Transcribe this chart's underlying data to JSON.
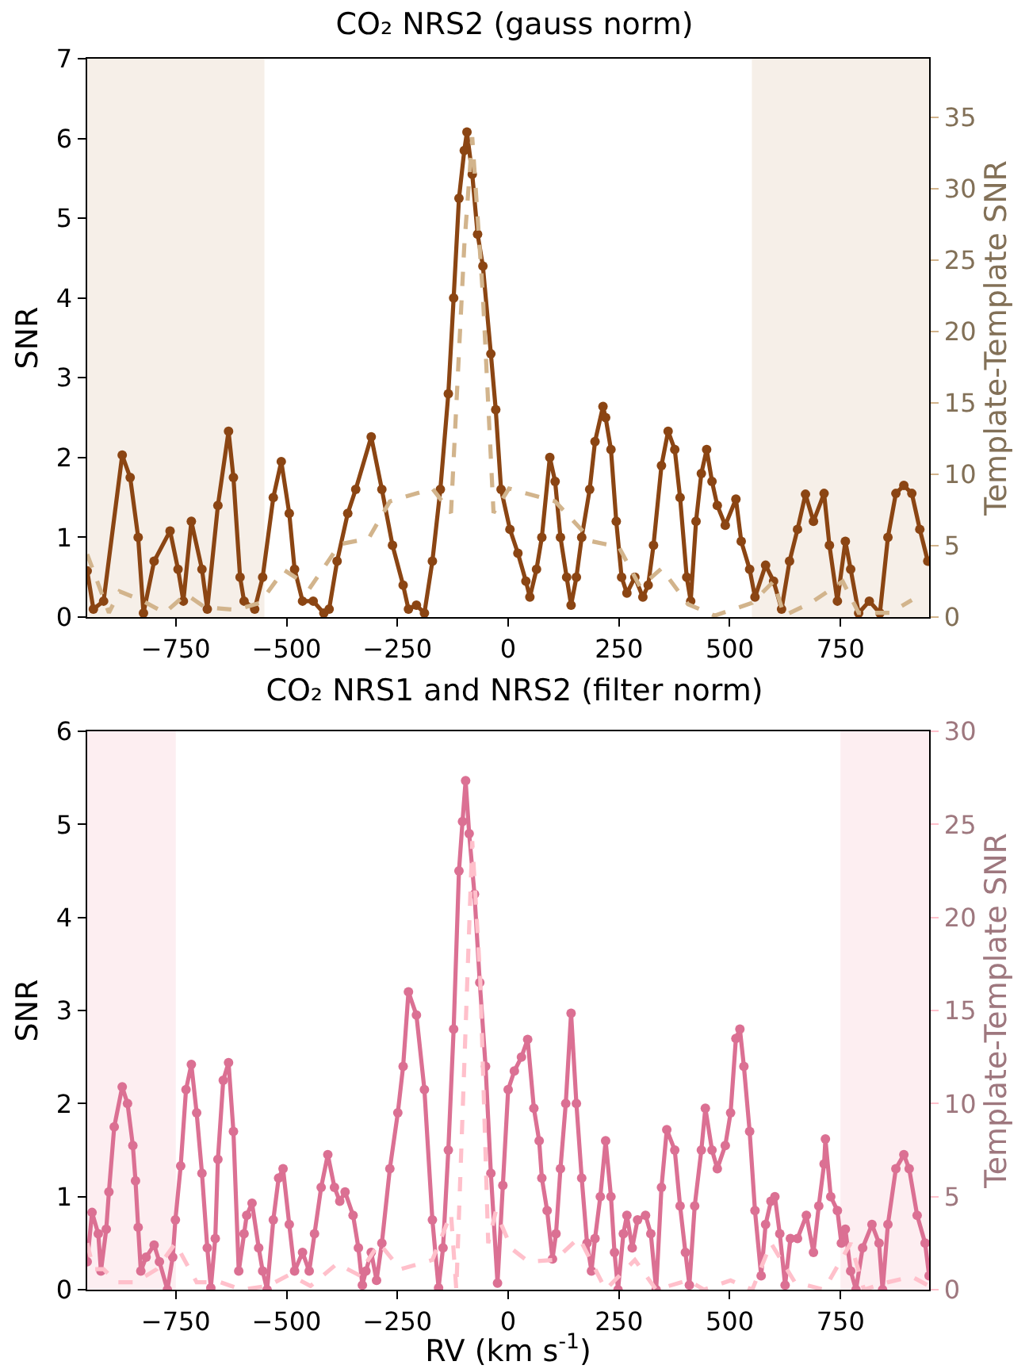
{
  "chart_data": [
    {
      "type": "line",
      "title": "CO₂ NRS2 (gauss norm)",
      "ylabel": "SNR",
      "y2label": "Template-Template SNR",
      "xlim": [
        -950,
        950
      ],
      "xticks": [
        -750,
        -500,
        -250,
        0,
        250,
        500,
        750
      ],
      "ylim": [
        0,
        7
      ],
      "yticks": [
        0,
        1,
        2,
        3,
        4,
        5,
        6,
        7
      ],
      "y2lim": [
        0,
        39.1
      ],
      "y2ticks": [
        0,
        5,
        10,
        15,
        20,
        25,
        30,
        35
      ],
      "bands": [
        {
          "axis": "x",
          "from": -950,
          "to": -550,
          "color": "#f6efe8"
        },
        {
          "axis": "x",
          "from": 550,
          "to": 950,
          "color": "#f6efe8"
        }
      ],
      "series": [
        {
          "color": "#8b4513",
          "marker": "circle",
          "line_style": "solid",
          "x": [
            -950,
            -936,
            -913,
            -871,
            -853,
            -835,
            -823,
            -799,
            -763,
            -745,
            -733,
            -715,
            -691,
            -679,
            -655,
            -631,
            -620,
            -605,
            -596,
            -572,
            -554,
            -530,
            -512,
            -494,
            -482,
            -464,
            -440,
            -416,
            -404,
            -386,
            -362,
            -344,
            -309,
            -285,
            -261,
            -237,
            -225,
            -207,
            -189,
            -171,
            -153,
            -135,
            -123,
            -111,
            -99,
            -93,
            -81,
            -69,
            -57,
            -39,
            -28,
            -16,
            4,
            22,
            40,
            49,
            64,
            76,
            94,
            106,
            118,
            132,
            142,
            154,
            166,
            184,
            196,
            214,
            220,
            232,
            244,
            256,
            268,
            286,
            304,
            316,
            328,
            346,
            361,
            376,
            388,
            403,
            412,
            424,
            436,
            448,
            460,
            472,
            490,
            514,
            526,
            545,
            557,
            581,
            599,
            617,
            635,
            653,
            671,
            689,
            713,
            725,
            743,
            761,
            773,
            791,
            815,
            839,
            857,
            875,
            893,
            911,
            929,
            947
          ],
          "values": [
            0.58,
            0.1,
            0.2,
            2.03,
            1.75,
            1.0,
            0.05,
            0.7,
            1.08,
            0.6,
            0.2,
            1.2,
            0.6,
            0.1,
            1.4,
            2.33,
            1.75,
            0.5,
            0.2,
            0.1,
            0.5,
            1.5,
            1.95,
            1.3,
            0.6,
            0.2,
            0.2,
            0.05,
            0.1,
            0.7,
            1.3,
            1.6,
            2.26,
            1.6,
            0.9,
            0.4,
            0.1,
            0.15,
            0.05,
            0.7,
            1.6,
            2.8,
            4.0,
            5.25,
            5.85,
            6.08,
            5.55,
            4.8,
            4.4,
            3.3,
            2.6,
            1.6,
            1.1,
            0.8,
            0.45,
            0.25,
            0.6,
            1.0,
            2.0,
            1.7,
            1.0,
            0.5,
            0.15,
            0.5,
            1.0,
            1.6,
            2.2,
            2.64,
            2.5,
            2.1,
            1.2,
            0.5,
            0.3,
            0.5,
            0.25,
            0.4,
            0.9,
            1.9,
            2.33,
            2.1,
            1.5,
            0.5,
            0.2,
            1.2,
            1.8,
            2.1,
            1.7,
            1.4,
            1.15,
            1.48,
            0.95,
            0.6,
            0.25,
            0.65,
            0.45,
            0.1,
            0.7,
            1.1,
            1.54,
            1.2,
            1.55,
            0.9,
            0.2,
            0.95,
            0.6,
            0.05,
            0.2,
            0.05,
            1.0,
            1.55,
            1.65,
            1.55,
            1.1,
            0.7
          ]
        },
        {
          "color": "#d2b48c",
          "marker": "none",
          "line_style": "dashed",
          "axis": "y2",
          "x": [
            -950,
            -901,
            -877,
            -829,
            -775,
            -727,
            -685,
            -614,
            -560,
            -506,
            -446,
            -380,
            -315,
            -267,
            -171,
            -129,
            -99,
            -81,
            -57,
            -33,
            2,
            106,
            190,
            250,
            298,
            346,
            406,
            466,
            551,
            599,
            623,
            683,
            755,
            791,
            863,
            911
          ],
          "values": [
            4.4,
            0.3,
            1.8,
            1.2,
            0.3,
            1.6,
            0.7,
            0.5,
            1.0,
            3.3,
            2.1,
            5.1,
            5.5,
            8.1,
            9.0,
            7.3,
            26,
            33.6,
            22.5,
            7.3,
            9.0,
            8.1,
            5.3,
            4.9,
            2.1,
            3.4,
            0.9,
            0.1,
            1.0,
            2.5,
            0.1,
            1.0,
            2.5,
            0.3,
            0.3,
            1.2
          ]
        }
      ]
    },
    {
      "type": "line",
      "title": "CO₂ NRS1 and NRS2 (filter norm)",
      "xlabel": "RV (km s$^{-1}$)",
      "ylabel": "SNR",
      "y2label": "Template-Template SNR",
      "xlim": [
        -950,
        950
      ],
      "xticks": [
        -750,
        -500,
        -250,
        0,
        250,
        500,
        750
      ],
      "ylim": [
        0,
        6
      ],
      "yticks": [
        0,
        1,
        2,
        3,
        4,
        5,
        6
      ],
      "y2lim": [
        0,
        30
      ],
      "y2ticks": [
        0,
        5,
        10,
        15,
        20,
        25,
        30
      ],
      "bands": [
        {
          "axis": "x",
          "from": -950,
          "to": -750,
          "color": "#fdeef1"
        },
        {
          "axis": "x",
          "from": 750,
          "to": 950,
          "color": "#fdeef1"
        }
      ],
      "series": [
        {
          "color": "#db7093",
          "marker": "circle",
          "line_style": "solid",
          "x": [
            -950,
            -939,
            -925,
            -919,
            -907,
            -901,
            -889,
            -871,
            -859,
            -847,
            -841,
            -835,
            -829,
            -817,
            -799,
            -787,
            -769,
            -757,
            -751,
            -739,
            -727,
            -715,
            -703,
            -691,
            -679,
            -671,
            -661,
            -655,
            -643,
            -631,
            -620,
            -608,
            -596,
            -590,
            -578,
            -563,
            -554,
            -544,
            -530,
            -518,
            -508,
            -494,
            -482,
            -464,
            -449,
            -437,
            -422,
            -407,
            -392,
            -380,
            -368,
            -350,
            -338,
            -329,
            -321,
            -309,
            -297,
            -285,
            -267,
            -249,
            -237,
            -225,
            -207,
            -189,
            -171,
            -157,
            -147,
            -135,
            -123,
            -111,
            -103,
            -96,
            -88,
            -76,
            -64,
            -51,
            -39,
            -24,
            -12,
            0,
            14,
            30,
            44,
            58,
            70,
            76,
            88,
            100,
            108,
            118,
            130,
            142,
            154,
            166,
            178,
            188,
            196,
            208,
            220,
            232,
            240,
            248,
            260,
            268,
            280,
            292,
            310,
            322,
            334,
            346,
            358,
            376,
            388,
            400,
            409,
            421,
            436,
            445,
            460,
            472,
            490,
            502,
            514,
            523,
            532,
            545,
            557,
            571,
            581,
            593,
            602,
            613,
            625,
            637,
            653,
            673,
            689,
            701,
            713,
            716,
            728,
            743,
            752,
            761,
            773,
            785,
            800,
            821,
            837,
            845,
            857,
            875,
            893,
            905,
            923,
            941,
            950
          ],
          "values": [
            0.3,
            0.83,
            0.6,
            0.2,
            0.65,
            1.05,
            1.75,
            2.18,
            2.0,
            1.55,
            1.17,
            0.67,
            0.2,
            0.35,
            0.48,
            0.3,
            0.0,
            0.35,
            0.75,
            1.33,
            2.15,
            2.42,
            1.9,
            1.25,
            0.45,
            0.02,
            0.55,
            1.4,
            2.25,
            2.44,
            1.7,
            0.2,
            0.6,
            0.8,
            0.93,
            0.45,
            0.2,
            0.0,
            0.75,
            1.2,
            1.3,
            0.7,
            0.2,
            0.4,
            0.2,
            0.6,
            1.1,
            1.45,
            1.1,
            0.95,
            1.05,
            0.8,
            0.45,
            0.05,
            0.2,
            0.4,
            0.1,
            0.5,
            1.3,
            1.9,
            2.4,
            3.2,
            2.95,
            2.15,
            0.75,
            0.02,
            0.45,
            1.5,
            2.8,
            4.5,
            5.03,
            5.47,
            4.9,
            4.25,
            3.3,
            2.4,
            1.25,
            0.07,
            1.12,
            2.15,
            2.35,
            2.5,
            2.69,
            1.95,
            1.6,
            1.2,
            0.85,
            0.33,
            0.6,
            1.3,
            2.0,
            2.97,
            2.0,
            1.2,
            0.5,
            0.2,
            0.55,
            1.0,
            1.6,
            1.0,
            0.4,
            0.0,
            0.6,
            0.8,
            0.45,
            0.75,
            0.8,
            0.6,
            0.0,
            1.1,
            1.72,
            1.5,
            0.9,
            0.4,
            0.05,
            0.9,
            1.5,
            1.95,
            1.5,
            1.3,
            1.55,
            1.9,
            2.7,
            2.8,
            2.4,
            1.7,
            0.85,
            0.15,
            0.7,
            0.95,
            1.0,
            0.6,
            0.05,
            0.55,
            0.55,
            0.8,
            0.4,
            0.9,
            1.35,
            1.62,
            1.0,
            0.85,
            0.5,
            0.65,
            0.2,
            0.0,
            0.45,
            0.7,
            0.5,
            0.0,
            0.7,
            1.3,
            1.45,
            1.3,
            0.8,
            0.5,
            0.15
          ]
        },
        {
          "color": "#ffc0cb",
          "marker": "none",
          "line_style": "dashed",
          "axis": "y2",
          "x": [
            -950,
            -936,
            -913,
            -883,
            -841,
            -793,
            -751,
            -703,
            -649,
            -602,
            -542,
            -494,
            -446,
            -386,
            -338,
            -291,
            -243,
            -171,
            -129,
            -117,
            -81,
            -63,
            -45,
            -28,
            8,
            46,
            106,
            160,
            220,
            286,
            334,
            406,
            442,
            502,
            551,
            593,
            647,
            713,
            773,
            803,
            857,
            911,
            950
          ],
          "values": [
            2.5,
            1.1,
            1.1,
            0.4,
            0.4,
            1.1,
            2.5,
            0.4,
            0.4,
            0,
            0.2,
            0.8,
            0.2,
            1.4,
            0.8,
            2.5,
            1.1,
            1.6,
            4.1,
            0,
            24.1,
            16.7,
            2.5,
            4.2,
            2.2,
            1.5,
            1.6,
            2.8,
            0,
            1.6,
            0,
            0.5,
            0,
            0.5,
            0,
            2.5,
            0.4,
            0,
            2.5,
            0,
            0.4,
            0.7,
            0.2
          ]
        }
      ]
    }
  ]
}
